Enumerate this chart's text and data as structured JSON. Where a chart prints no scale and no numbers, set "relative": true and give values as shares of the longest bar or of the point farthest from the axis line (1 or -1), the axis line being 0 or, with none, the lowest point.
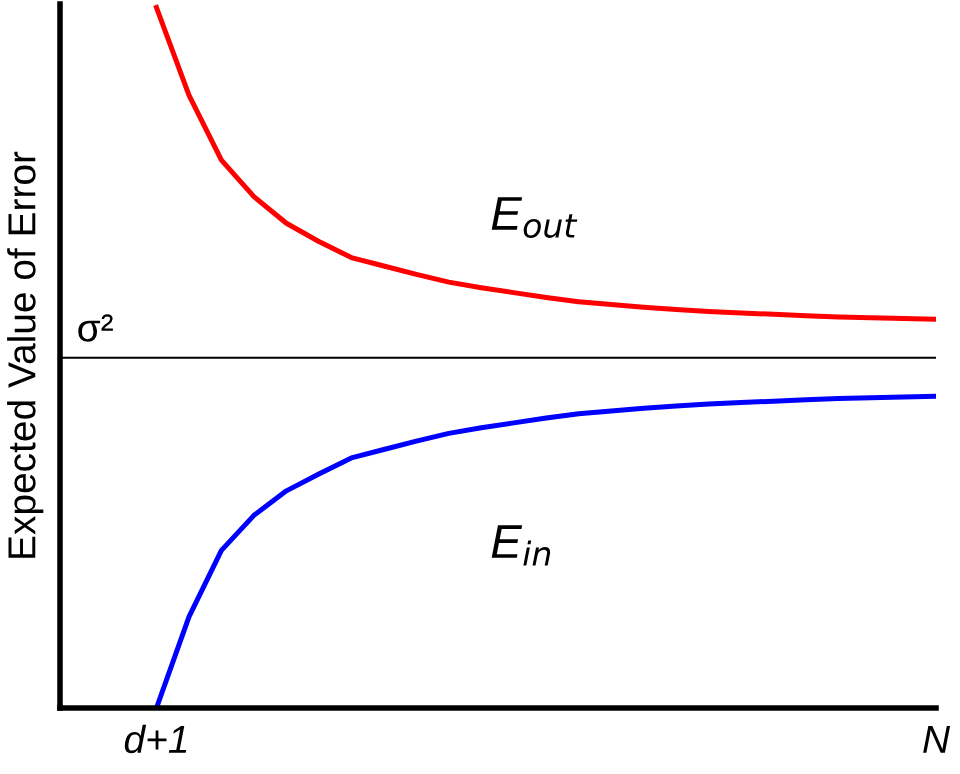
{
  "chart_data": {
    "type": "line",
    "relative": true,
    "ylabel": "Expected Value of Error",
    "categories": [
      "d+1",
      null,
      null,
      null,
      null,
      null,
      null,
      null,
      null,
      null,
      null,
      null,
      null,
      null,
      null,
      null,
      null,
      null,
      null,
      null,
      null,
      null,
      null,
      null,
      "N"
    ],
    "grid": false,
    "legend": false,
    "marker": "none",
    "line_style": "solid",
    "series": [
      {
        "name": "E$_{out}$",
        "color": "#ff0000",
        "values": [
          1.0,
          0.875,
          0.782,
          0.73,
          0.692,
          0.666,
          0.643,
          0.631,
          0.619,
          0.608,
          0.6,
          0.593,
          0.586,
          0.58,
          0.576,
          0.572,
          0.569,
          0.566,
          0.564,
          0.562,
          0.56,
          0.558,
          0.557,
          0.556,
          0.555
        ]
      },
      {
        "name": "E$_{in}$",
        "color": "#0000ff",
        "values": [
          0,
          0.13,
          0.225,
          0.275,
          0.31,
          0.334,
          0.357,
          0.369,
          0.381,
          0.392,
          0.4,
          0.407,
          0.414,
          0.42,
          0.424,
          0.428,
          0.431,
          0.434,
          0.436,
          0.438,
          0.44,
          0.442,
          0.443,
          0.444,
          0.445
        ]
      }
    ],
    "ref_lines": [
      {
        "axis": "y",
        "value": 0.5,
        "label": "σ²",
        "color": "#000000",
        "line_style": "solid"
      }
    ]
  }
}
